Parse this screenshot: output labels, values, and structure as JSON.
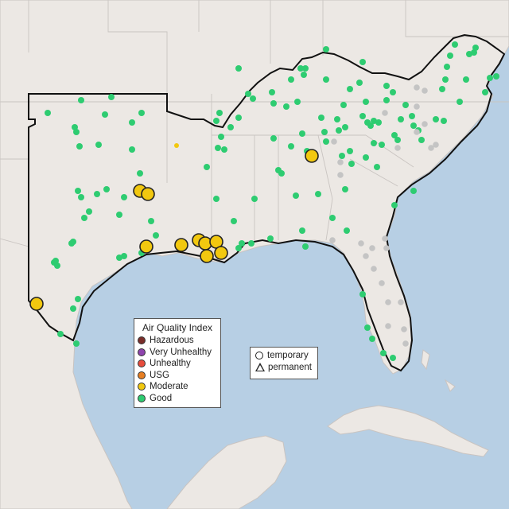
{
  "map": {
    "background_water": "#b7cfe4",
    "land_color": "#ece8e4",
    "boundary_color": "#c9c4c1",
    "highlight_outline": "#111111",
    "marker_colors": {
      "moderate": "#f2c80f",
      "good": "#2ecc71",
      "gray": "#c4c4c4",
      "hazardous": "#7a2e2a",
      "very_unhealthy": "#8e44ad",
      "unhealthy": "#e74c3c",
      "usg": "#e67e22"
    },
    "marker_kinds": [
      "temporary circle",
      "permanent triangle"
    ]
  },
  "legend_aqi": {
    "title": "Air Quality Index",
    "items": [
      {
        "label": "Hazardous",
        "color": "#7a2e2a"
      },
      {
        "label": "Very Unhealthy",
        "color": "#8e44ad"
      },
      {
        "label": "Unhealthy",
        "color": "#e74c3c"
      },
      {
        "label": "USG",
        "color": "#e67e22"
      },
      {
        "label": "Moderate",
        "color": "#f2c80f"
      },
      {
        "label": "Good",
        "color": "#2ecc71"
      }
    ]
  },
  "legend_type": {
    "items": [
      {
        "label": "temporary",
        "shape": "circle"
      },
      {
        "label": "permanent",
        "shape": "triangle"
      }
    ]
  }
}
